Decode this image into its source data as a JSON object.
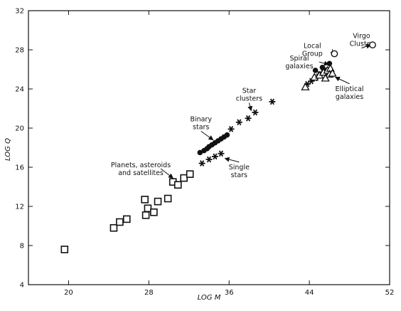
{
  "chart_data": {
    "type": "scatter",
    "title": "",
    "xlabel": "LOG M",
    "ylabel": "LOG Q",
    "xlim": [
      16,
      52
    ],
    "ylim": [
      4,
      32
    ],
    "xticks": [
      "20",
      "28",
      "36",
      "44",
      "52"
    ],
    "xtick_values": [
      20,
      28,
      36,
      44,
      52
    ],
    "yticks": [
      "4",
      "8",
      "12",
      "16",
      "20",
      "24",
      "28",
      "32"
    ],
    "ytick_values": [
      4,
      8,
      12,
      16,
      20,
      24,
      28,
      32
    ],
    "grid": false,
    "series": [
      {
        "marker": "square",
        "points": [
          [
            19.6,
            7.6
          ],
          [
            24.5,
            9.8
          ],
          [
            25.1,
            10.4
          ],
          [
            25.8,
            10.7
          ],
          [
            27.6,
            12.7
          ],
          [
            27.7,
            11.1
          ],
          [
            27.9,
            11.8
          ],
          [
            28.5,
            11.4
          ],
          [
            28.9,
            12.5
          ],
          [
            29.9,
            12.8
          ],
          [
            30.4,
            14.5
          ],
          [
            30.9,
            14.2
          ],
          [
            31.5,
            14.9
          ],
          [
            32.1,
            15.3
          ]
        ]
      },
      {
        "marker": "asterisk",
        "points": [
          [
            33.3,
            16.4
          ],
          [
            34.0,
            16.8
          ],
          [
            34.6,
            17.1
          ],
          [
            35.2,
            17.4
          ],
          [
            36.2,
            19.9
          ],
          [
            37.0,
            20.6
          ],
          [
            37.9,
            21.0
          ],
          [
            38.6,
            21.6
          ],
          [
            40.3,
            22.7
          ],
          [
            43.8,
            24.5
          ],
          [
            44.2,
            24.8
          ],
          [
            44.6,
            25.1
          ],
          [
            45.0,
            25.5
          ],
          [
            45.5,
            25.9
          ]
        ]
      },
      {
        "marker": "filled-circle",
        "points": [
          [
            33.1,
            17.5
          ],
          [
            33.5,
            17.7
          ],
          [
            33.8,
            17.9
          ],
          [
            34.0,
            18.1
          ],
          [
            34.3,
            18.3
          ],
          [
            34.6,
            18.5
          ],
          [
            34.9,
            18.7
          ],
          [
            35.2,
            18.9
          ],
          [
            35.5,
            19.1
          ],
          [
            35.8,
            19.3
          ],
          [
            44.6,
            25.9
          ],
          [
            45.3,
            26.2
          ],
          [
            46.0,
            26.6
          ]
        ]
      },
      {
        "marker": "open-triangle",
        "points": [
          [
            43.6,
            24.2
          ],
          [
            44.5,
            25.2
          ],
          [
            45.0,
            25.4
          ],
          [
            45.4,
            25.7
          ],
          [
            45.8,
            25.9
          ],
          [
            46.1,
            26.1
          ],
          [
            46.0,
            25.5
          ],
          [
            45.6,
            25.1
          ],
          [
            46.3,
            25.6
          ]
        ]
      },
      {
        "marker": "open-circle",
        "points": [
          [
            46.5,
            27.6
          ],
          [
            50.3,
            28.5
          ]
        ]
      }
    ],
    "annotations": [
      {
        "lines": [
          "Virgo",
          "Cluster"
        ],
        "at": [
          49.2,
          29.2
        ],
        "anchor": "middle",
        "arrow": [
          50.1,
          28.5
        ]
      },
      {
        "lines": [
          "Local",
          "Group"
        ],
        "at": [
          44.3,
          28.2
        ],
        "anchor": "middle",
        "arrow": [
          46.4,
          27.4
        ]
      },
      {
        "lines": [
          "Spiral",
          "galaxies"
        ],
        "at": [
          43.0,
          26.9
        ],
        "anchor": "middle",
        "arrow": [
          45.9,
          26.5
        ]
      },
      {
        "lines": [
          "Elliptical",
          "galaxies"
        ],
        "at": [
          48.0,
          23.8
        ],
        "anchor": "middle",
        "arrow": [
          46.6,
          25.2
        ]
      },
      {
        "lines": [
          "Star",
          "clusters"
        ],
        "at": [
          38.0,
          23.6
        ],
        "anchor": "middle",
        "arrow": [
          38.2,
          21.8
        ]
      },
      {
        "lines": [
          "Binary",
          "stars"
        ],
        "at": [
          33.2,
          20.7
        ],
        "anchor": "middle",
        "arrow": [
          34.4,
          18.8
        ]
      },
      {
        "lines": [
          "Single",
          "stars"
        ],
        "at": [
          37.0,
          15.8
        ],
        "anchor": "middle",
        "arrow": [
          35.6,
          16.9
        ]
      },
      {
        "lines": [
          "Planets, asteroids",
          "and satellites"
        ],
        "at": [
          27.2,
          16.0
        ],
        "anchor": "middle",
        "arrow": [
          30.4,
          14.9
        ]
      }
    ]
  }
}
